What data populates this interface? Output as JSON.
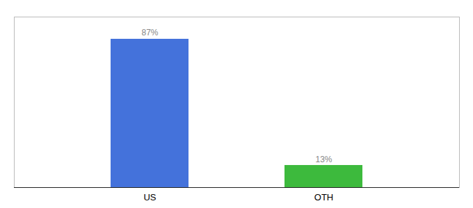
{
  "chart_data": {
    "type": "bar",
    "categories": [
      "US",
      "OTH"
    ],
    "values": [
      87,
      13
    ],
    "value_labels": [
      "87%",
      "13%"
    ],
    "colors": [
      "#4472db",
      "#3dba3d"
    ],
    "ylim": [
      0,
      100
    ],
    "data_labels": true,
    "tick_labels": "x"
  }
}
